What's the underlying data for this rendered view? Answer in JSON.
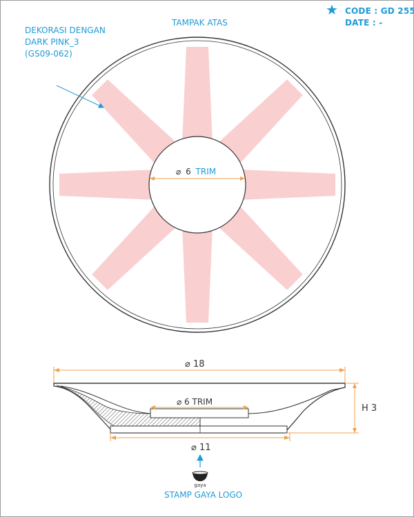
{
  "header": {
    "code_label": "CODE : GD 255",
    "date_label": "DATE : -",
    "star_icon": "star-icon"
  },
  "top_view": {
    "title": "TAMPAK ATAS",
    "decoration_note": [
      "DEKORASI DENGAN",
      "DARK PINK_3",
      "(GS09-062)"
    ],
    "inner_diameter_symbol": "⌀",
    "inner_diameter_value": "6",
    "inner_diameter_trim": "TRIM"
  },
  "side_view": {
    "overall_diameter": "⌀ 18",
    "inner_trim_label": "⌀ 6 TRIM",
    "base_diameter": "⌀ 11",
    "height_label": "H 3"
  },
  "stamp": {
    "logo_text": "gaya",
    "caption": "STAMP GAYA LOGO"
  },
  "colors": {
    "accent_blue": "#1e9ad6",
    "dimension_orange": "#f0a050",
    "decoration_pink": "#f9cfcf",
    "line": "#333333"
  }
}
